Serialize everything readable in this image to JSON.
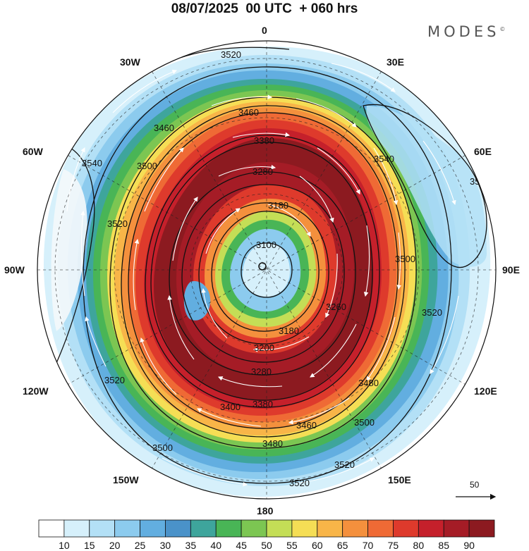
{
  "title": "08/07/2025  00 UTC  + 060 hrs",
  "brand": "MODES",
  "brand_mark": "©",
  "longitude_labels": {
    "n0": "0",
    "e30": "30E",
    "e60": "60E",
    "e90": "90E",
    "e120": "120E",
    "e150": "150E",
    "s180": "180",
    "w150": "150W",
    "w120": "120W",
    "w90": "90W",
    "w60": "60W",
    "w30": "30W"
  },
  "contour_labels": [
    "3100",
    "3180",
    "3200",
    "3260",
    "3280",
    "3380",
    "3400",
    "3460",
    "3480",
    "3500",
    "3520",
    "3540"
  ],
  "vector_reference": {
    "label": "50"
  },
  "colorbar": {
    "levels": [
      "10",
      "15",
      "20",
      "25",
      "30",
      "35",
      "40",
      "45",
      "50",
      "55",
      "60",
      "65",
      "70",
      "75",
      "80",
      "85",
      "90"
    ],
    "colors": [
      "#ffffff",
      "#d6f0fb",
      "#b3e0f6",
      "#8ccbee",
      "#62aee0",
      "#4a92c9",
      "#3ea59c",
      "#49b556",
      "#7cc652",
      "#c4de56",
      "#f5de55",
      "#f8b548",
      "#f4903d",
      "#ef6a35",
      "#de3a2c",
      "#c5202b",
      "#a51c26",
      "#8c1a20"
    ]
  },
  "colors": {
    "ocean_bg": "#f0f0f0",
    "contour": "#111111",
    "vector": "#ffffff"
  }
}
